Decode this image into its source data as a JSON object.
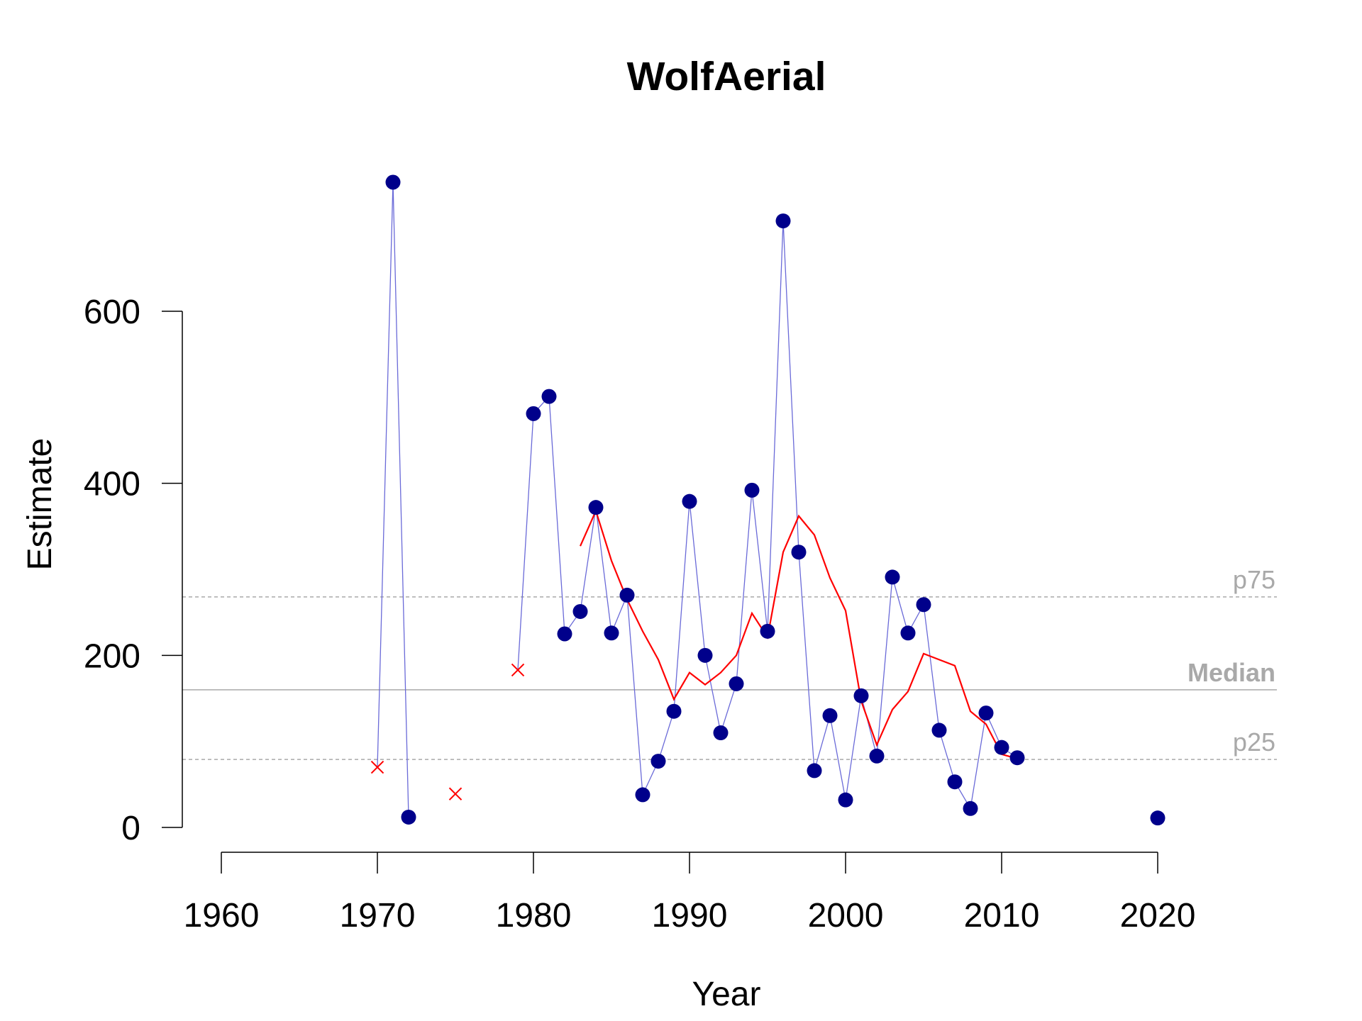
{
  "chart_data": {
    "type": "line",
    "title": "WolfAerial",
    "xlabel": "Year",
    "ylabel": "Estimate",
    "xlim": [
      1960,
      2020
    ],
    "ylim": [
      0,
      600
    ],
    "xticks": [
      1960,
      1970,
      1980,
      1990,
      2000,
      2010,
      2020
    ],
    "yticks": [
      0,
      200,
      400,
      600
    ],
    "grid": false,
    "colors": {
      "points": "#00008b",
      "connector": "#6a6ad8",
      "excluded": "#ff0000",
      "smooth": "#ff0000",
      "reference": "#a9a9a9"
    },
    "series": [
      {
        "kind": "estimates",
        "points": [
          {
            "x": 1971,
            "y": 750
          },
          {
            "x": 1972,
            "y": 12
          },
          {
            "x": 1980,
            "y": 481
          },
          {
            "x": 1981,
            "y": 501
          },
          {
            "x": 1982,
            "y": 225
          },
          {
            "x": 1983,
            "y": 251
          },
          {
            "x": 1984,
            "y": 372
          },
          {
            "x": 1985,
            "y": 226
          },
          {
            "x": 1986,
            "y": 270
          },
          {
            "x": 1987,
            "y": 38
          },
          {
            "x": 1988,
            "y": 77
          },
          {
            "x": 1989,
            "y": 135
          },
          {
            "x": 1990,
            "y": 379
          },
          {
            "x": 1991,
            "y": 200
          },
          {
            "x": 1992,
            "y": 110
          },
          {
            "x": 1993,
            "y": 167
          },
          {
            "x": 1994,
            "y": 392
          },
          {
            "x": 1995,
            "y": 228
          },
          {
            "x": 1996,
            "y": 705
          },
          {
            "x": 1997,
            "y": 320
          },
          {
            "x": 1998,
            "y": 66
          },
          {
            "x": 1999,
            "y": 130
          },
          {
            "x": 2000,
            "y": 32
          },
          {
            "x": 2001,
            "y": 153
          },
          {
            "x": 2002,
            "y": 83
          },
          {
            "x": 2003,
            "y": 291
          },
          {
            "x": 2004,
            "y": 226
          },
          {
            "x": 2005,
            "y": 259
          },
          {
            "x": 2006,
            "y": 113
          },
          {
            "x": 2007,
            "y": 53
          },
          {
            "x": 2008,
            "y": 22
          },
          {
            "x": 2009,
            "y": 133
          },
          {
            "x": 2010,
            "y": 93
          },
          {
            "x": 2011,
            "y": 81
          },
          {
            "x": 2020,
            "y": 11
          }
        ]
      },
      {
        "kind": "excluded",
        "points": [
          {
            "x": 1970,
            "y": 70
          },
          {
            "x": 1975,
            "y": 39
          },
          {
            "x": 1979,
            "y": 183
          }
        ]
      },
      {
        "kind": "running-mean",
        "points": [
          {
            "x": 1983,
            "y": 327
          },
          {
            "x": 1984,
            "y": 368
          },
          {
            "x": 1985,
            "y": 310
          },
          {
            "x": 1986,
            "y": 265
          },
          {
            "x": 1987,
            "y": 228
          },
          {
            "x": 1988,
            "y": 195
          },
          {
            "x": 1989,
            "y": 149
          },
          {
            "x": 1990,
            "y": 180
          },
          {
            "x": 1991,
            "y": 166
          },
          {
            "x": 1992,
            "y": 180
          },
          {
            "x": 1993,
            "y": 200
          },
          {
            "x": 1994,
            "y": 249
          },
          {
            "x": 1995,
            "y": 221
          },
          {
            "x": 1996,
            "y": 320
          },
          {
            "x": 1997,
            "y": 362
          },
          {
            "x": 1998,
            "y": 340
          },
          {
            "x": 1999,
            "y": 290
          },
          {
            "x": 2000,
            "y": 252
          },
          {
            "x": 2001,
            "y": 147
          },
          {
            "x": 2002,
            "y": 96
          },
          {
            "x": 2003,
            "y": 137
          },
          {
            "x": 2004,
            "y": 158
          },
          {
            "x": 2005,
            "y": 202
          },
          {
            "x": 2006,
            "y": 195
          },
          {
            "x": 2007,
            "y": 188
          },
          {
            "x": 2008,
            "y": 135
          },
          {
            "x": 2009,
            "y": 120
          },
          {
            "x": 2010,
            "y": 85
          },
          {
            "x": 2011,
            "y": 80
          }
        ]
      }
    ],
    "reference_lines": [
      {
        "label": "p75",
        "y": 268,
        "style": "dashed",
        "bold": false
      },
      {
        "label": "Median",
        "y": 160,
        "style": "solid",
        "bold": true
      },
      {
        "label": "p25",
        "y": 79,
        "style": "dashed",
        "bold": false
      }
    ]
  }
}
